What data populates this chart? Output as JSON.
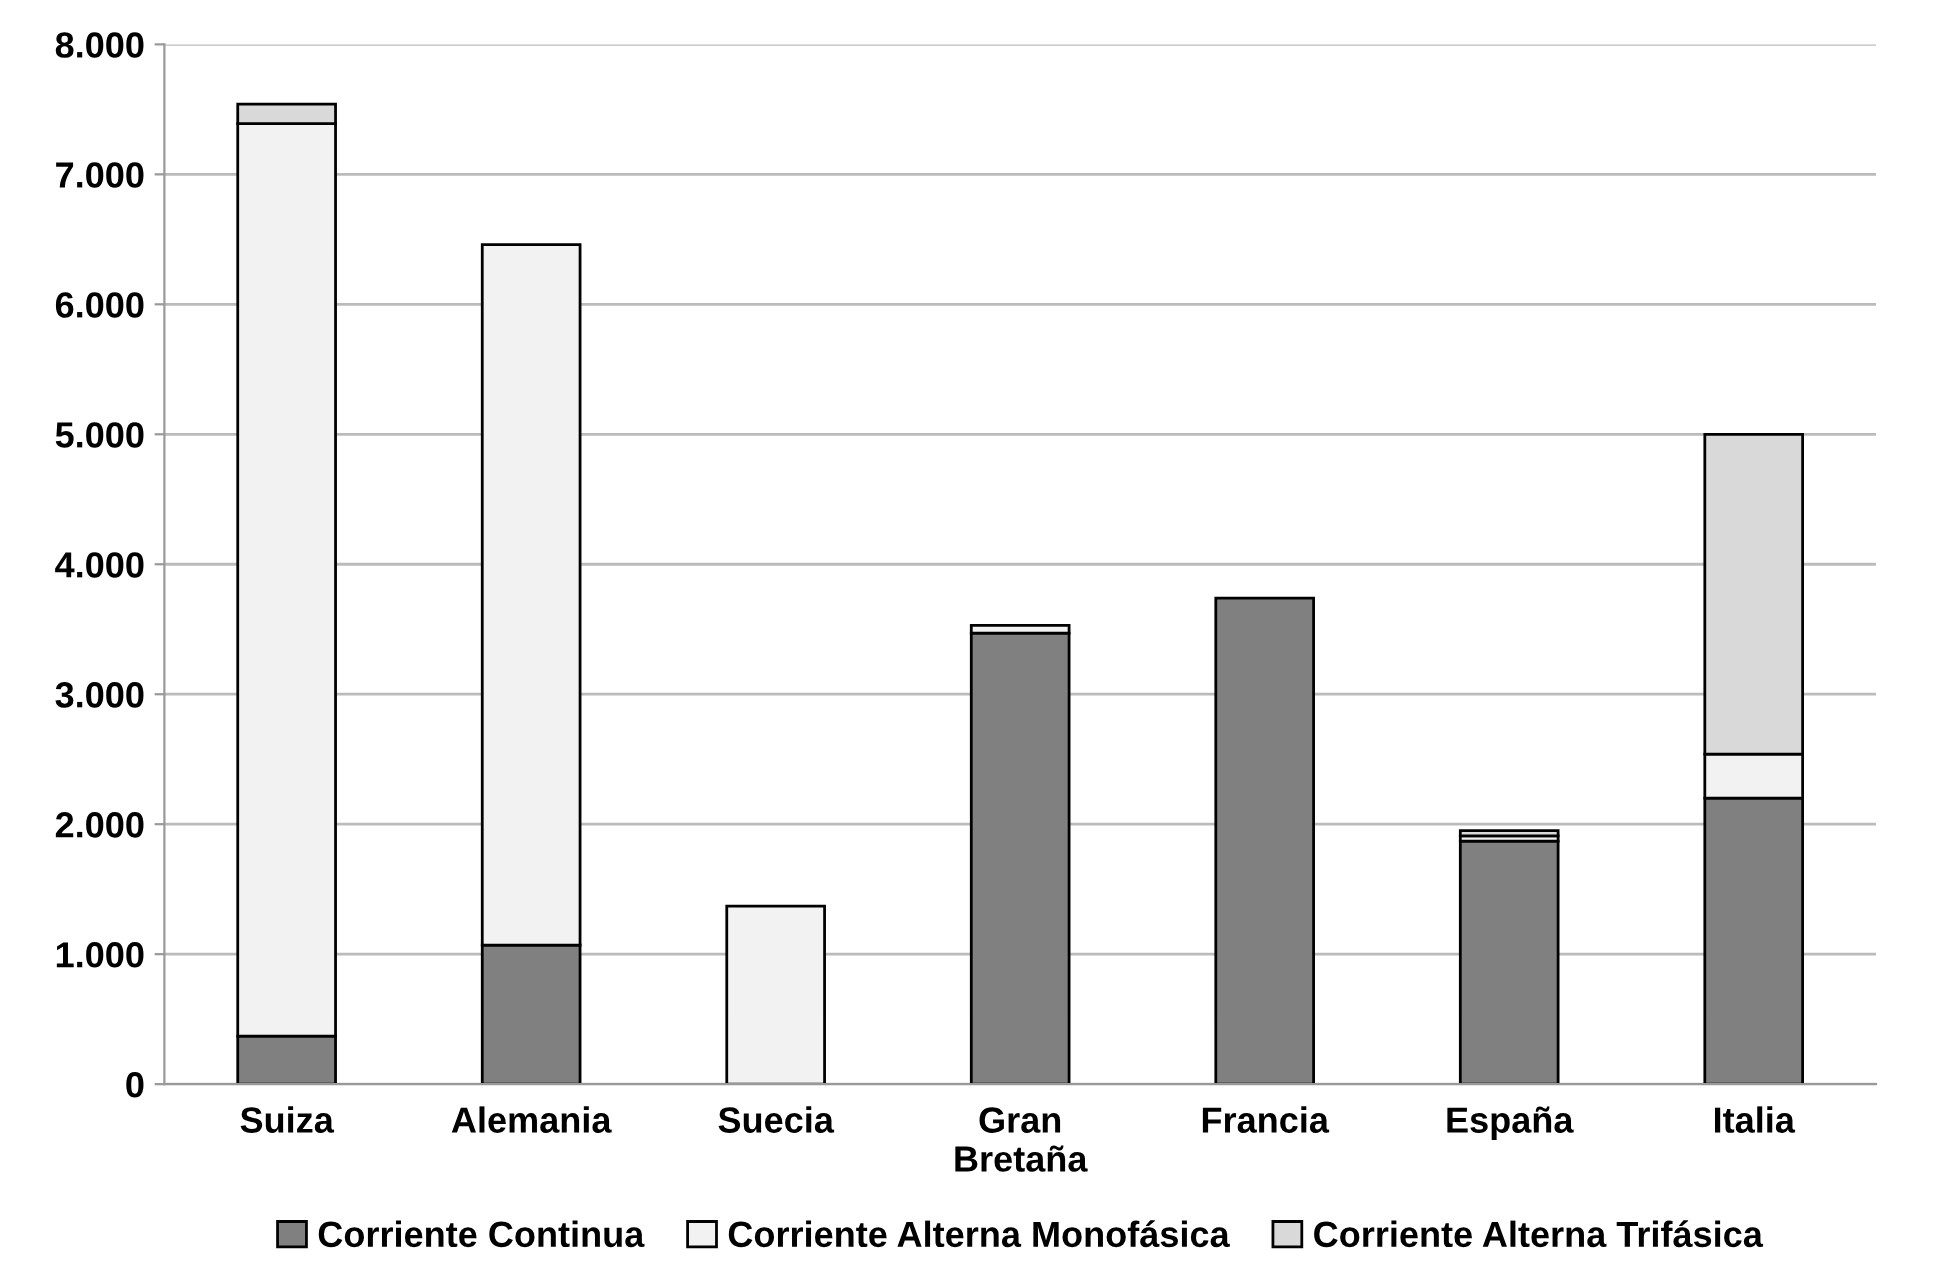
{
  "chart_data": {
    "type": "bar",
    "stacked": true,
    "categories": [
      "Suiza",
      "Alemania",
      "Suecia",
      "Gran\nBretaña",
      "Francia",
      "España",
      "Italia"
    ],
    "series": [
      {
        "name": "Corriente Continua",
        "color": "#808080",
        "values": [
          370,
          1070,
          0,
          3470,
          3740,
          1870,
          2200
        ]
      },
      {
        "name": "Corriente Alterna Monofásica",
        "color": "#f2f2f2",
        "values": [
          7020,
          5390,
          1370,
          60,
          0,
          40,
          340
        ]
      },
      {
        "name": "Corriente Alterna Trifásica",
        "color": "#d9d9d9",
        "values": [
          150,
          0,
          0,
          0,
          0,
          40,
          2460
        ]
      }
    ],
    "ylim": [
      0,
      8000
    ],
    "yticks": [
      {
        "value": 0,
        "label": "0"
      },
      {
        "value": 1000,
        "label": "1.000"
      },
      {
        "value": 2000,
        "label": "2.000"
      },
      {
        "value": 3000,
        "label": "3.000"
      },
      {
        "value": 4000,
        "label": "4.000"
      },
      {
        "value": 5000,
        "label": "5.000"
      },
      {
        "value": 6000,
        "label": "6.000"
      },
      {
        "value": 7000,
        "label": "7.000"
      },
      {
        "value": 8000,
        "label": "8.000"
      }
    ],
    "grid": "y",
    "legend": "bottom"
  }
}
